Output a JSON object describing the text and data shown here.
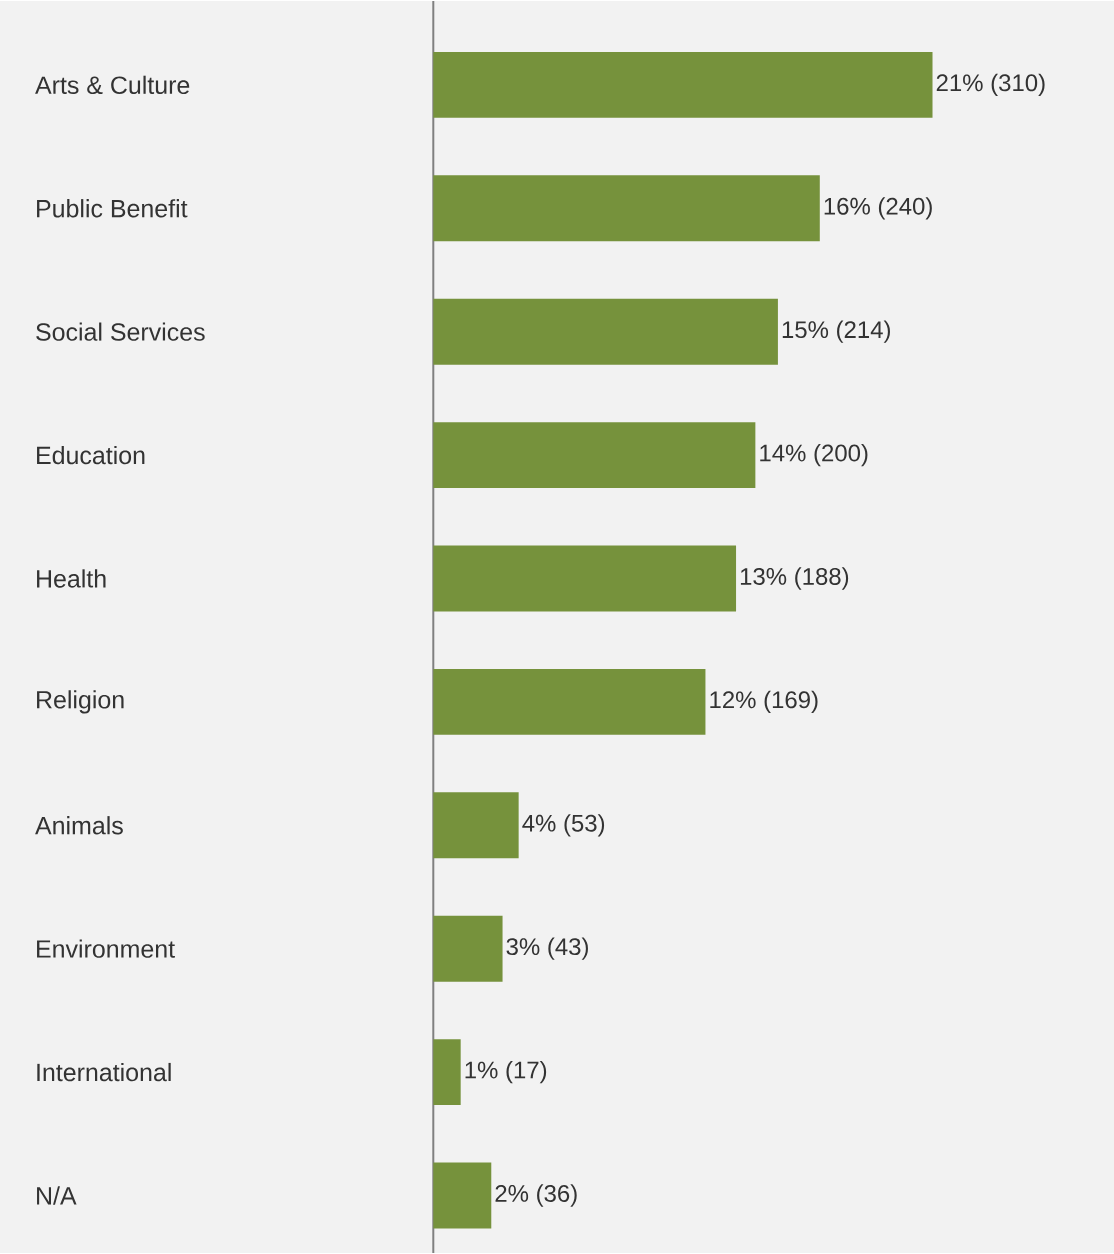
{
  "chart_data": {
    "type": "bar",
    "orientation": "horizontal",
    "categories": [
      "Arts & Culture",
      "Public Benefit",
      "Social Services",
      "Education",
      "Health",
      "Religion",
      "Animals",
      "Environment",
      "International",
      "N/A"
    ],
    "values": [
      310,
      240,
      214,
      200,
      188,
      169,
      53,
      43,
      17,
      36
    ],
    "value_labels": [
      "21% (310)",
      "16% (240)",
      "15% (214)",
      "14% (200)",
      "13% (188)",
      "12% (169)",
      "4% (53)",
      "3% (43)",
      "1% (17)",
      "2% (36)"
    ],
    "color": "#76923c"
  }
}
